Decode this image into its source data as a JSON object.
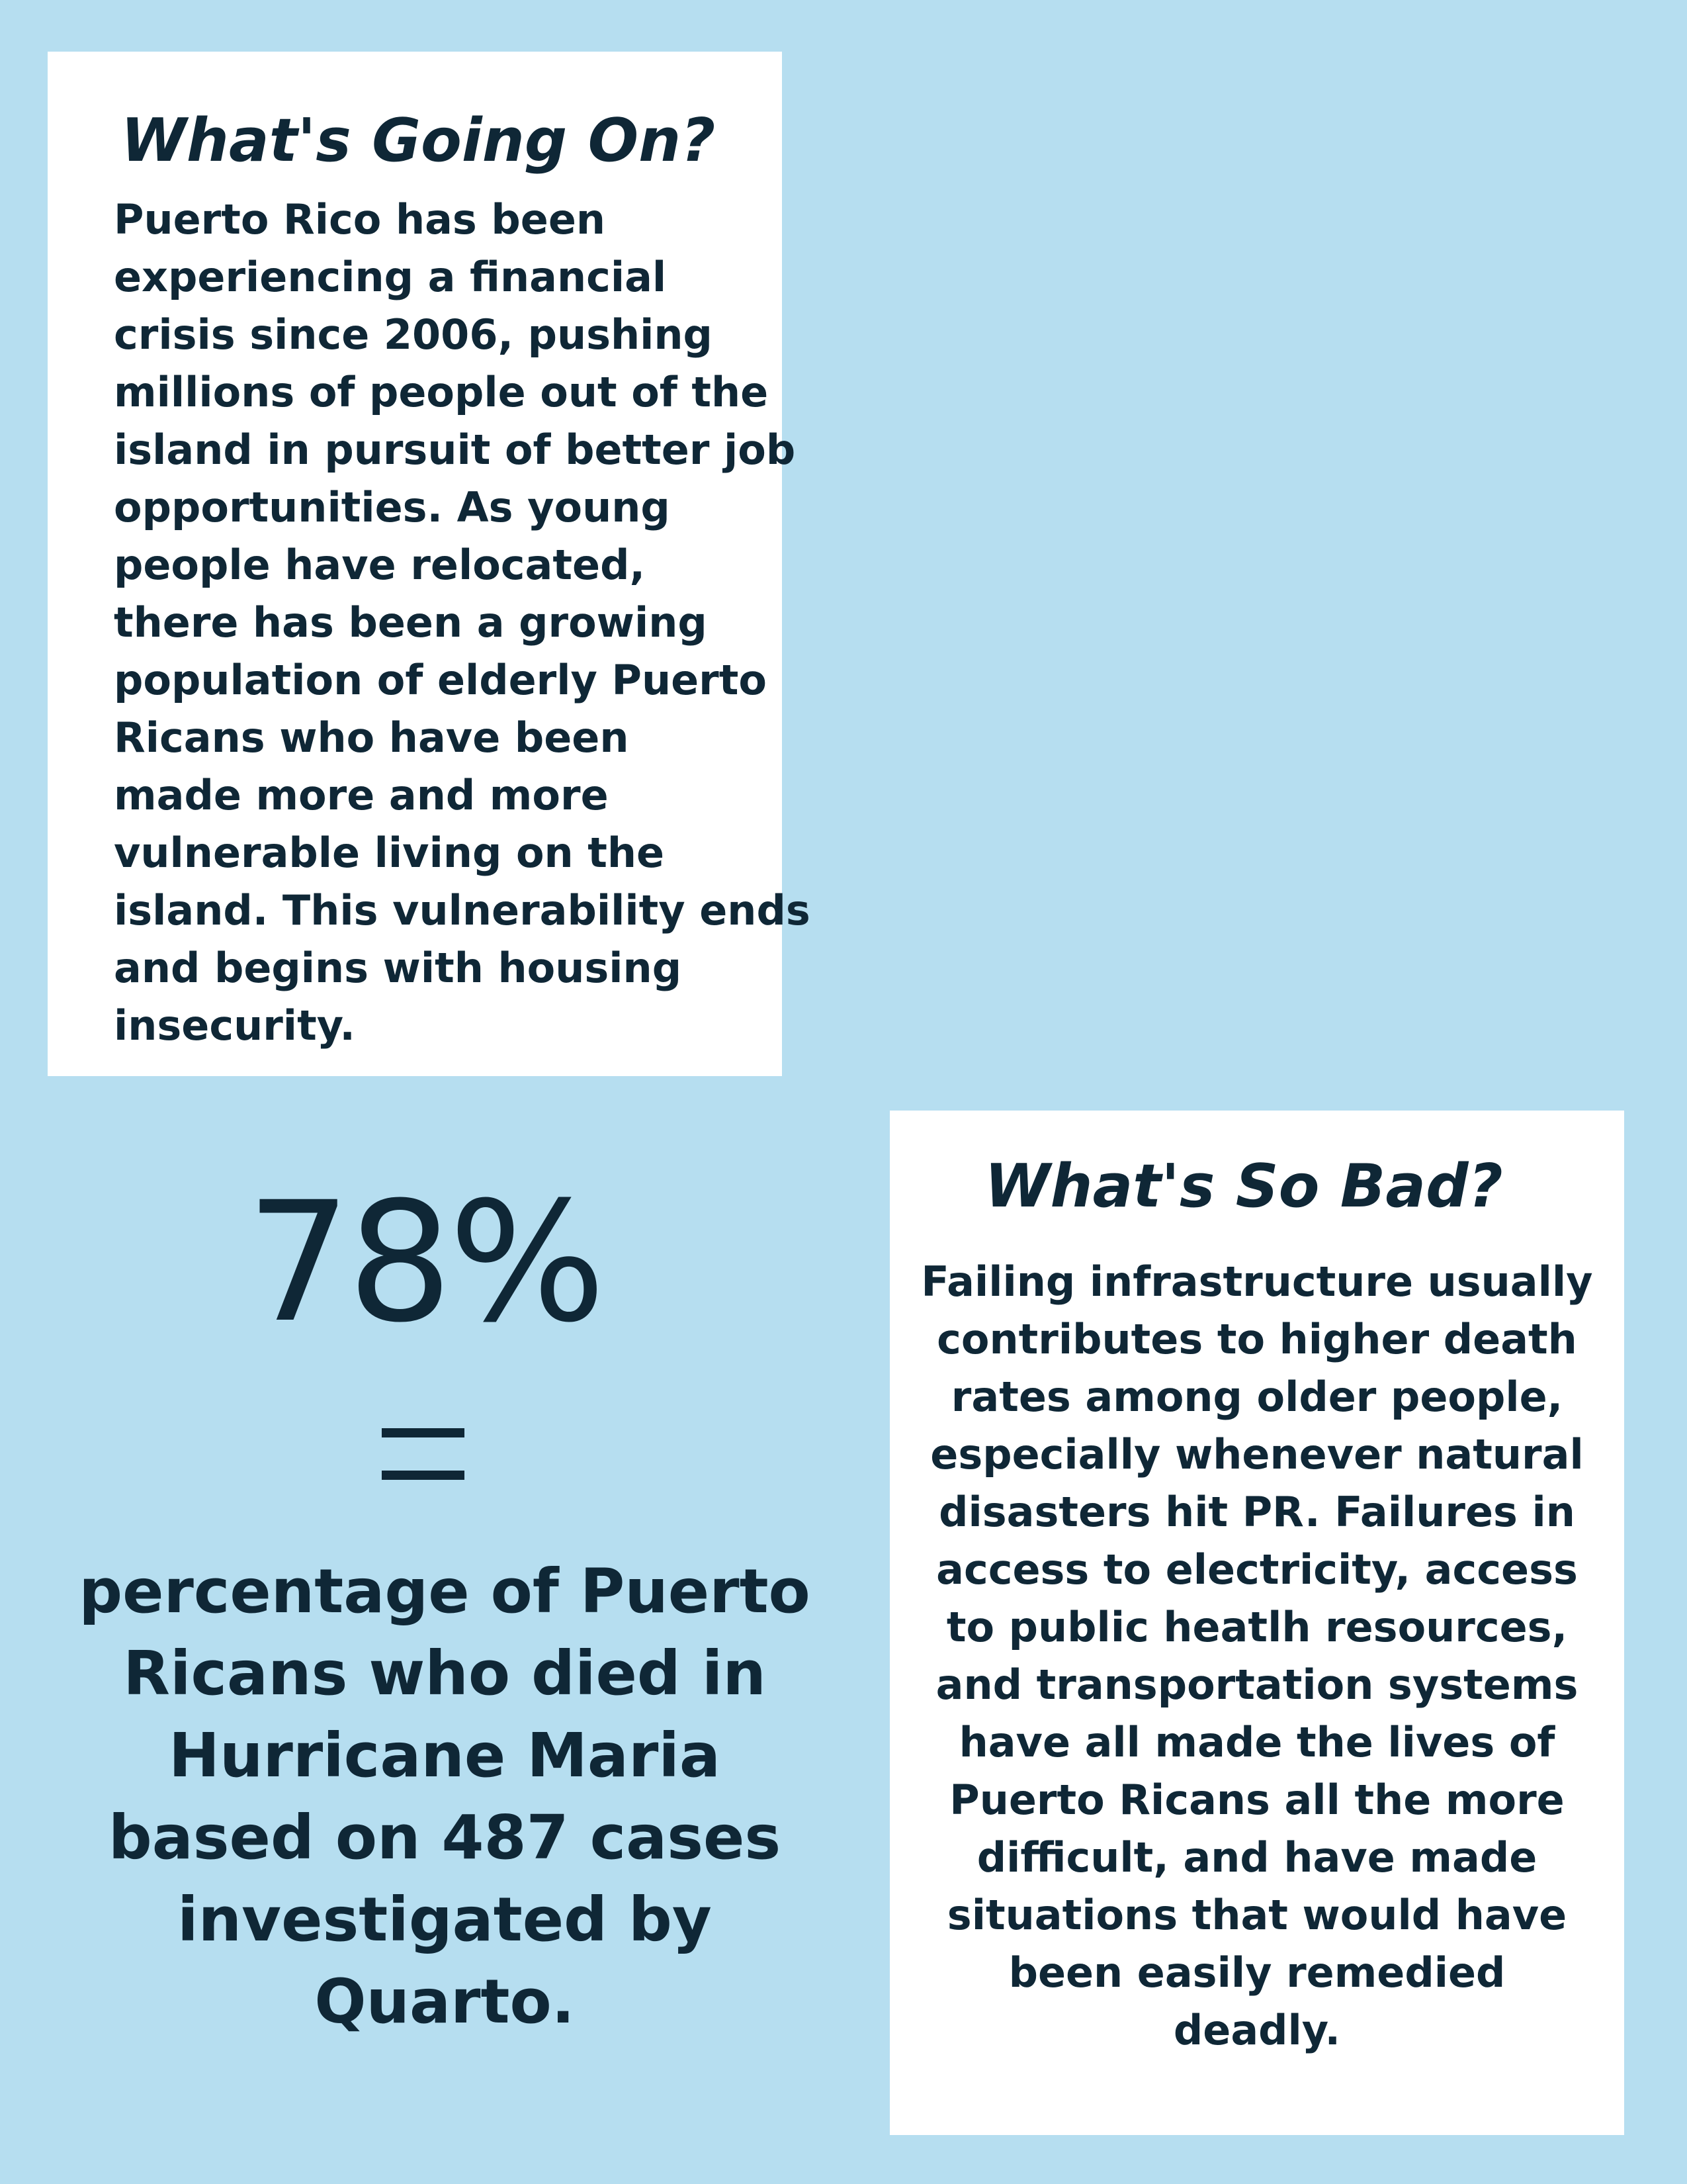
{
  "going_on": {
    "heading": "What's Going On?",
    "lines": [
      "Puerto Rico has been",
      "experiencing a financial",
      "crisis since 2006, pushing",
      "millions of people out of the",
      "island in pursuit of better job",
      "opportunities. As young",
      "people have relocated,",
      "there has been a growing",
      "population of elderly Puerto",
      "Ricans who have been",
      "made more and more",
      "vulnerable living on the",
      "island. This vulnerability ends",
      "and begins with housing",
      "insecurity."
    ]
  },
  "stat": {
    "number": "78%",
    "caption_lines": [
      "percentage of Puerto",
      "Ricans who died in",
      "Hurricane Maria",
      "based on 487 cases",
      "investigated by",
      "Quarto."
    ]
  },
  "so_bad": {
    "heading": "What's So Bad?",
    "lines": [
      "Failing infrastructure usually",
      "contributes to higher death",
      "rates among older people,",
      "especially whenever natural",
      "disasters hit PR. Failures in",
      "access to electricity, access",
      "to public heatlh resources,",
      "and transportation systems",
      "have all made the lives of",
      "Puerto Ricans all the more",
      "difficult, and have made",
      "situations that would have",
      "been easily remedied",
      "deadly."
    ]
  },
  "colors": {
    "background": "#b6def0",
    "card": "#ffffff",
    "text": "#0f2736"
  }
}
